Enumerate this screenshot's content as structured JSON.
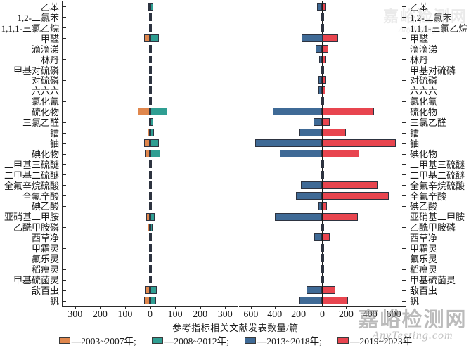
{
  "chart_data": {
    "type": "bar",
    "variant": "diverging-horizontal-double-panel",
    "grid": false,
    "legend_position": "bottom",
    "xlabel": "参考指标相关文献发表数量/篇",
    "categories": [
      "乙苯",
      "1,2-二氯苯",
      "1,1,1-三氯乙烷",
      "甲醛",
      "滴滴涕",
      "林丹",
      "甲基对硫磷",
      "对硫磷",
      "六六六",
      "氯化氰",
      "硫化物",
      "三氯乙醛",
      "镭",
      "铀",
      "碘化物",
      "二甲基三硫醚",
      "二甲基二硫醚",
      "全氟辛烷硫酸",
      "全氟辛酸",
      "碘乙酸",
      "亚硝基二甲胺",
      "乙酰甲胺磷",
      "西草净",
      "甲霜灵",
      "氟乐灵",
      "稻瘟灵",
      "甲基硫菌灵",
      "敌百虫",
      "钒"
    ],
    "panels": [
      {
        "id": "left",
        "xlim": [
          -350,
          350
        ],
        "tick_values": [
          -300,
          -200,
          -100,
          0,
          100,
          200,
          300
        ],
        "tick_labels": [
          "300",
          "200",
          "100",
          "0",
          "100",
          "200",
          "300"
        ]
      },
      {
        "id": "right",
        "xlim": [
          -700,
          700
        ],
        "tick_values": [
          -600,
          -400,
          -200,
          0,
          200,
          400,
          600
        ],
        "tick_labels": [
          "600",
          "400",
          "200",
          "0",
          "200",
          "400",
          "600"
        ]
      }
    ],
    "series": [
      {
        "name": "2003~2007年",
        "panel": "left",
        "direction": "left",
        "color": "#E0874D",
        "values": [
          8,
          4,
          3,
          25,
          3,
          2,
          2,
          5,
          4,
          2,
          50,
          3,
          10,
          25,
          20,
          3,
          2,
          3,
          4,
          2,
          15,
          10,
          3,
          2,
          2,
          2,
          2,
          20,
          25
        ]
      },
      {
        "name": "2008~2012年",
        "panel": "left",
        "direction": "right",
        "color": "#2F9E92",
        "values": [
          12,
          4,
          4,
          35,
          5,
          3,
          3,
          5,
          4,
          3,
          70,
          12,
          15,
          35,
          40,
          3,
          3,
          5,
          5,
          3,
          18,
          10,
          4,
          2,
          2,
          2,
          2,
          28,
          25
        ]
      },
      {
        "name": "2013~2018年",
        "panel": "right",
        "direction": "left",
        "color": "#3F6A96",
        "values": [
          45,
          8,
          10,
          175,
          55,
          25,
          10,
          30,
          35,
          8,
          415,
          75,
          190,
          565,
          360,
          10,
          8,
          180,
          220,
          30,
          400,
          10,
          65,
          8,
          6,
          6,
          8,
          135,
          190
        ]
      },
      {
        "name": "2019~2023年",
        "panel": "right",
        "direction": "right",
        "color": "#E8454F",
        "values": [
          35,
          6,
          6,
          135,
          50,
          30,
          15,
          30,
          25,
          6,
          435,
          60,
          200,
          620,
          310,
          12,
          8,
          465,
          560,
          40,
          300,
          12,
          60,
          8,
          6,
          6,
          8,
          110,
          215
        ]
      }
    ]
  },
  "legend": {
    "items": [
      {
        "label": "—2003~2007年;",
        "color": "#E0874D"
      },
      {
        "label": "—2008~2012年;",
        "color": "#2F9E92"
      },
      {
        "label": "—2013~2018年;",
        "color": "#3F6A96"
      },
      {
        "label": "—2019~2023年",
        "color": "#E8454F"
      }
    ]
  },
  "watermark": {
    "line1": "嘉峪检测网",
    "line2": "AnyTesting.com"
  }
}
